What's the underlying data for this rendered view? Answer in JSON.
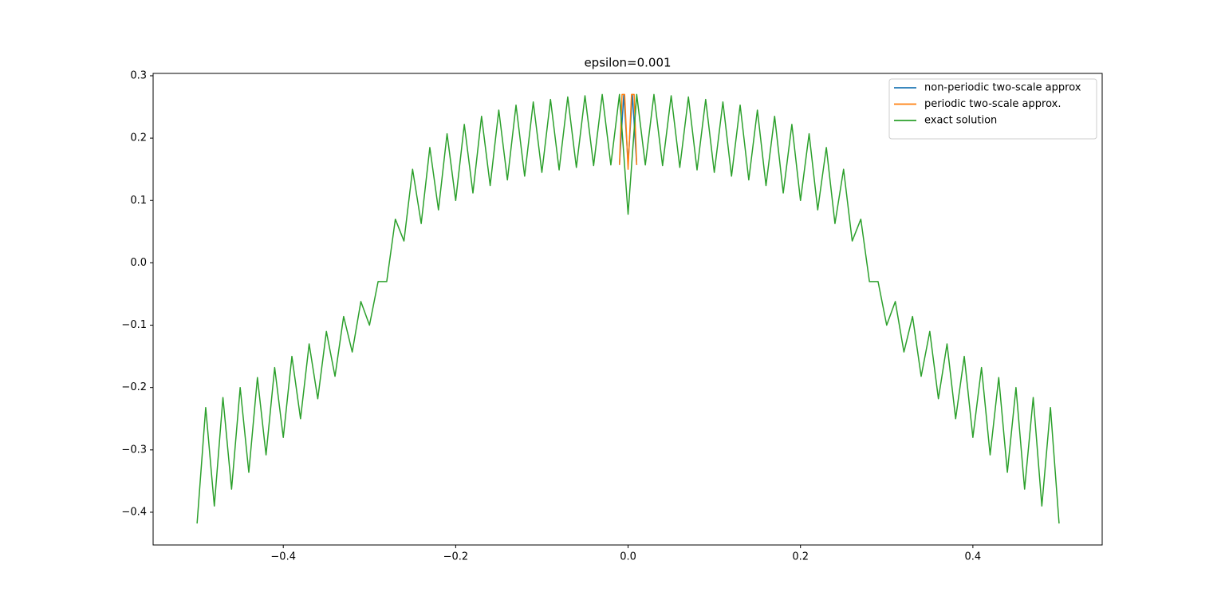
{
  "chart_data": {
    "type": "line",
    "title": "epsilon=0.001",
    "xlim": [
      -0.551,
      0.55
    ],
    "ylim": [
      -0.4525,
      0.3038
    ],
    "xticks": [
      {
        "value": -0.4,
        "label": "−0.4"
      },
      {
        "value": -0.2,
        "label": "−0.2"
      },
      {
        "value": 0,
        "label": "0.0"
      },
      0.2,
      0.4
    ],
    "yticks": [
      {
        "value": -0.4,
        "label": "−0.4"
      },
      {
        "value": -0.3,
        "label": "−0.3"
      },
      {
        "value": -0.2,
        "label": "−0.2"
      },
      {
        "value": -0.1,
        "label": "−0.1"
      },
      {
        "value": 0,
        "label": "0.0"
      },
      0.1,
      0.2,
      0.3
    ],
    "legend": "upper right",
    "series": [
      {
        "name": "non-periodic two-scale approx",
        "color": "#1f77b4",
        "x": [
          -0.01,
          -0.005,
          0,
          0.005,
          0.01
        ],
        "values": [
          0.157,
          0.27,
          0.16,
          0.27,
          0.157
        ]
      },
      {
        "name": "periodic two-scale approx.",
        "color": "#ff7f0e",
        "x": [
          -0.01,
          -0.007,
          -0.004,
          0,
          0.004,
          0.007,
          0.01
        ],
        "values": [
          0.157,
          0.27,
          0.27,
          0.15,
          0.27,
          0.27,
          0.157
        ]
      },
      {
        "name": "exact solution",
        "color": "#2ca02c",
        "x": [
          -0.5,
          -0.49,
          -0.48,
          -0.47,
          -0.46,
          -0.45,
          -0.44,
          -0.43,
          -0.42,
          -0.41,
          -0.4,
          -0.39,
          -0.38,
          -0.37,
          -0.36,
          -0.35,
          -0.34,
          -0.33,
          -0.32,
          -0.31,
          -0.3,
          -0.29,
          -0.28,
          -0.27,
          -0.26,
          -0.25,
          -0.24,
          -0.23,
          -0.22,
          -0.21,
          -0.2,
          -0.19,
          -0.18,
          -0.17,
          -0.16,
          -0.15,
          -0.14,
          -0.13,
          -0.12,
          -0.11,
          -0.1,
          -0.09,
          -0.08,
          -0.07,
          -0.06,
          -0.05,
          -0.04,
          -0.03,
          -0.02,
          -0.01,
          0,
          0.01,
          0.02,
          0.03,
          0.04,
          0.05,
          0.06,
          0.07,
          0.08,
          0.09,
          0.1,
          0.11,
          0.12,
          0.13,
          0.14,
          0.15,
          0.16,
          0.17,
          0.18,
          0.19,
          0.2,
          0.21,
          0.22,
          0.23,
          0.24,
          0.25,
          0.26,
          0.27,
          0.28,
          0.29,
          0.3,
          0.31,
          0.32,
          0.33,
          0.34,
          0.35,
          0.36,
          0.37,
          0.38,
          0.39,
          0.4,
          0.41,
          0.42,
          0.43,
          0.44,
          0.45,
          0.46,
          0.47,
          0.48,
          0.49,
          0.5
        ],
        "values": [
          -0.418,
          -0.232,
          -0.39,
          -0.216,
          -0.363,
          -0.2,
          -0.336,
          -0.184,
          -0.308,
          -0.168,
          -0.28,
          -0.15,
          -0.25,
          -0.13,
          -0.218,
          -0.11,
          -0.182,
          -0.086,
          -0.143,
          -0.062,
          -0.1,
          -0.03,
          -0.03,
          0.07,
          0.035,
          0.15,
          0.063,
          0.185,
          0.085,
          0.207,
          0.1,
          0.222,
          0.112,
          0.235,
          0.124,
          0.245,
          0.133,
          0.253,
          0.139,
          0.258,
          0.145,
          0.262,
          0.149,
          0.266,
          0.153,
          0.268,
          0.156,
          0.27,
          0.157,
          0.27,
          0.078,
          0.27,
          0.157,
          0.27,
          0.156,
          0.268,
          0.153,
          0.266,
          0.149,
          0.262,
          0.145,
          0.258,
          0.139,
          0.253,
          0.133,
          0.245,
          0.124,
          0.235,
          0.112,
          0.222,
          0.1,
          0.207,
          0.085,
          0.185,
          0.063,
          0.15,
          0.035,
          0.07,
          -0.03,
          -0.03,
          -0.1,
          -0.062,
          -0.143,
          -0.086,
          -0.182,
          -0.11,
          -0.218,
          -0.13,
          -0.25,
          -0.15,
          -0.28,
          -0.168,
          -0.308,
          -0.184,
          -0.336,
          -0.2,
          -0.363,
          -0.216,
          -0.39,
          -0.232,
          -0.418
        ]
      }
    ]
  }
}
